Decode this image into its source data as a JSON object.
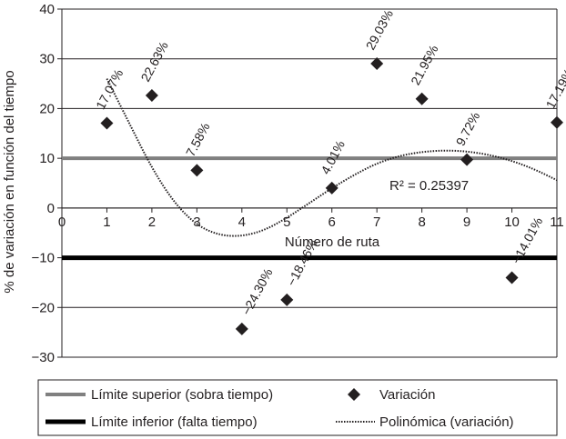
{
  "chart_data": {
    "type": "scatter",
    "title": "",
    "xlabel": "Número de ruta",
    "ylabel": "% de variación en función del tiempo",
    "xlim": [
      0,
      11
    ],
    "ylim": [
      -30,
      40
    ],
    "x_ticks": [
      "0",
      "1",
      "2",
      "3",
      "4",
      "5",
      "6",
      "7",
      "8",
      "9",
      "10",
      "11"
    ],
    "y_ticks": [
      "−30",
      "−20",
      "−10",
      "0",
      "10",
      "20",
      "30",
      "40"
    ],
    "grid": "horizontal",
    "legend_position": "bottom",
    "series": [
      {
        "name": "Variación",
        "kind": "scatter",
        "marker": "diamond",
        "color": "#231f20",
        "x": [
          1,
          2,
          3,
          4,
          5,
          6,
          7,
          8,
          9,
          10,
          11
        ],
        "y": [
          17.07,
          22.63,
          7.58,
          -24.3,
          -18.46,
          4.01,
          29.03,
          21.95,
          9.72,
          -14.01,
          17.19
        ],
        "labels": [
          "17.07%",
          "22.63%",
          "7.58%",
          "−24.30%",
          "−18.46%",
          "4.01%",
          "29.03%",
          "21.95%",
          "9.72%",
          "−14.01%",
          "17.19%"
        ]
      },
      {
        "name": "Límite superior (sobra tiempo)",
        "kind": "hline",
        "y": 10,
        "color": "#808080"
      },
      {
        "name": "Límite inferior (falta tiempo)",
        "kind": "hline",
        "y": -10,
        "color": "#000000"
      },
      {
        "name": "Polinómica (variación)",
        "kind": "trendline",
        "style": "dotted",
        "color": "#231f20",
        "x": [
          1,
          1.5,
          2,
          2.5,
          3,
          3.5,
          4,
          4.5,
          5,
          5.5,
          6,
          6.5,
          7,
          7.5,
          8,
          8.5,
          9,
          9.5,
          10,
          10.5,
          11
        ],
        "y": [
          26,
          17,
          8,
          1,
          -3.5,
          -5.5,
          -5.7,
          -4.5,
          -2,
          1,
          4,
          6.7,
          9,
          10.5,
          11.3,
          11.6,
          11.4,
          10.7,
          9.5,
          7.8,
          5.6
        ]
      }
    ],
    "annotations": [
      {
        "text": "R² = 0.25397",
        "x": 8.4,
        "y": 4.5
      }
    ]
  },
  "legend": {
    "items": [
      {
        "label": "Límite superior (sobra tiempo)",
        "symbol": "line",
        "color": "#808080"
      },
      {
        "label": "Variación",
        "symbol": "diamond",
        "color": "#231f20"
      },
      {
        "label": "Límite inferior (falta tiempo)",
        "symbol": "line",
        "color": "#000000"
      },
      {
        "label": "Polinómica (variación)",
        "symbol": "dotted",
        "color": "#231f20"
      }
    ]
  }
}
